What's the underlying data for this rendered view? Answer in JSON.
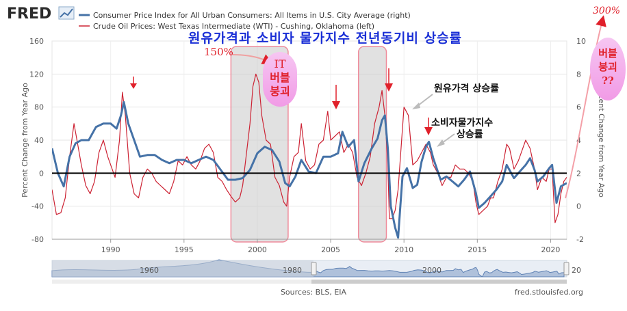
{
  "header": {
    "logo_text": "FRED",
    "logo_icon": "chart-line-icon",
    "legend": [
      {
        "label": "Consumer Price Index for All Urban Consumers: All Items in U.S. City Average (right)",
        "color": "#4572a7"
      },
      {
        "label": "Crude Oil Prices: West Texas Intermediate (WTI) - Cushing, Oklahoma (left)",
        "color": "#cc2233"
      }
    ]
  },
  "overlay": {
    "title": "원유가격과 소비자 물가지수 전년동기비 상승률",
    "label_150": "150%",
    "label_300": "300%",
    "it_bubble": [
      "IT",
      "버블",
      "붕괴"
    ],
    "bubble_q": [
      "버블",
      "붕괴",
      "??"
    ],
    "oil_label": "원유가격 상승률",
    "cpi_label": [
      "소비자물가지수",
      "상승률"
    ]
  },
  "footer": {
    "sources": "Sources: BLS, EIA",
    "site": "fred.stlouisfed.org"
  },
  "navigator": {
    "labels": [
      "1960",
      "1980",
      "2000",
      "20"
    ]
  },
  "chart_data": {
    "type": "line",
    "x_range": [
      1986.0,
      2021.1
    ],
    "x_ticks": [
      "1990",
      "1995",
      "2000",
      "2005",
      "2010",
      "2015",
      "2020"
    ],
    "y_left": {
      "label": "Percent Change from Year Ago",
      "range": [
        -80,
        160
      ],
      "ticks": [
        "160",
        "120",
        "80",
        "40",
        "0",
        "-40",
        "-80"
      ]
    },
    "y_right": {
      "label": "Percent Change from Year Ago",
      "range": [
        -2,
        10
      ],
      "ticks": [
        "10",
        "8",
        "6",
        "4",
        "2",
        "0",
        "-2"
      ]
    },
    "grid": true,
    "legend_position": "top",
    "shaded_periods": [
      [
        1998.2,
        2002.1
      ],
      [
        2006.9,
        2008.8
      ]
    ],
    "series": [
      {
        "name": "Crude Oil Prices: West Texas Intermediate (WTI) - Cushing, Oklahoma (left)",
        "axis": "left",
        "color": "#cc2233",
        "points": [
          [
            1986.0,
            -20
          ],
          [
            1986.3,
            -50
          ],
          [
            1986.6,
            -48
          ],
          [
            1986.9,
            -30
          ],
          [
            1987.2,
            20
          ],
          [
            1987.5,
            60
          ],
          [
            1987.8,
            30
          ],
          [
            1988.0,
            10
          ],
          [
            1988.3,
            -15
          ],
          [
            1988.6,
            -25
          ],
          [
            1988.9,
            -10
          ],
          [
            1989.2,
            25
          ],
          [
            1989.5,
            40
          ],
          [
            1989.8,
            20
          ],
          [
            1990.0,
            10
          ],
          [
            1990.3,
            -5
          ],
          [
            1990.6,
            40
          ],
          [
            1990.8,
            98
          ],
          [
            1991.0,
            70
          ],
          [
            1991.3,
            0
          ],
          [
            1991.6,
            -25
          ],
          [
            1991.9,
            -30
          ],
          [
            1992.2,
            -5
          ],
          [
            1992.5,
            5
          ],
          [
            1992.8,
            0
          ],
          [
            1993.1,
            -10
          ],
          [
            1993.4,
            -15
          ],
          [
            1993.7,
            -20
          ],
          [
            1994.0,
            -25
          ],
          [
            1994.3,
            -10
          ],
          [
            1994.6,
            15
          ],
          [
            1994.9,
            10
          ],
          [
            1995.2,
            20
          ],
          [
            1995.5,
            10
          ],
          [
            1995.8,
            5
          ],
          [
            1996.1,
            15
          ],
          [
            1996.4,
            30
          ],
          [
            1996.7,
            35
          ],
          [
            1997.0,
            25
          ],
          [
            1997.3,
            -5
          ],
          [
            1997.6,
            -10
          ],
          [
            1997.9,
            -20
          ],
          [
            1998.2,
            -28
          ],
          [
            1998.5,
            -35
          ],
          [
            1998.8,
            -30
          ],
          [
            1999.0,
            -15
          ],
          [
            1999.2,
            15
          ],
          [
            1999.5,
            60
          ],
          [
            1999.7,
            105
          ],
          [
            1999.9,
            120
          ],
          [
            2000.1,
            110
          ],
          [
            2000.3,
            70
          ],
          [
            2000.6,
            40
          ],
          [
            2000.9,
            35
          ],
          [
            2001.2,
            -5
          ],
          [
            2001.5,
            -15
          ],
          [
            2001.8,
            -35
          ],
          [
            2002.0,
            -40
          ],
          [
            2002.2,
            -5
          ],
          [
            2002.5,
            20
          ],
          [
            2002.8,
            25
          ],
          [
            2003.0,
            60
          ],
          [
            2003.3,
            15
          ],
          [
            2003.6,
            5
          ],
          [
            2003.9,
            10
          ],
          [
            2004.2,
            35
          ],
          [
            2004.5,
            40
          ],
          [
            2004.8,
            75
          ],
          [
            2005.0,
            40
          ],
          [
            2005.3,
            45
          ],
          [
            2005.6,
            50
          ],
          [
            2005.9,
            25
          ],
          [
            2006.2,
            35
          ],
          [
            2006.5,
            25
          ],
          [
            2006.8,
            -5
          ],
          [
            2007.1,
            -15
          ],
          [
            2007.4,
            0
          ],
          [
            2007.7,
            20
          ],
          [
            2008.0,
            60
          ],
          [
            2008.3,
            80
          ],
          [
            2008.5,
            100
          ],
          [
            2008.7,
            70
          ],
          [
            2008.9,
            10
          ],
          [
            2009.0,
            -55
          ],
          [
            2009.2,
            -55
          ],
          [
            2009.4,
            -45
          ],
          [
            2009.6,
            -20
          ],
          [
            2009.8,
            30
          ],
          [
            2010.0,
            80
          ],
          [
            2010.3,
            70
          ],
          [
            2010.6,
            10
          ],
          [
            2010.9,
            15
          ],
          [
            2011.2,
            25
          ],
          [
            2011.5,
            35
          ],
          [
            2011.8,
            25
          ],
          [
            2012.0,
            10
          ],
          [
            2012.3,
            0
          ],
          [
            2012.6,
            -15
          ],
          [
            2012.9,
            -5
          ],
          [
            2013.2,
            -5
          ],
          [
            2013.5,
            10
          ],
          [
            2013.8,
            5
          ],
          [
            2014.1,
            5
          ],
          [
            2014.4,
            0
          ],
          [
            2014.7,
            -10
          ],
          [
            2014.9,
            -35
          ],
          [
            2015.1,
            -50
          ],
          [
            2015.4,
            -45
          ],
          [
            2015.7,
            -40
          ],
          [
            2015.9,
            -30
          ],
          [
            2016.1,
            -30
          ],
          [
            2016.4,
            -10
          ],
          [
            2016.7,
            5
          ],
          [
            2017.0,
            35
          ],
          [
            2017.2,
            30
          ],
          [
            2017.5,
            5
          ],
          [
            2017.8,
            15
          ],
          [
            2018.0,
            25
          ],
          [
            2018.3,
            40
          ],
          [
            2018.6,
            30
          ],
          [
            2018.9,
            5
          ],
          [
            2019.1,
            -20
          ],
          [
            2019.4,
            -5
          ],
          [
            2019.7,
            -10
          ],
          [
            2019.9,
            5
          ],
          [
            2020.1,
            5
          ],
          [
            2020.3,
            -60
          ],
          [
            2020.5,
            -50
          ],
          [
            2020.7,
            -25
          ],
          [
            2020.9,
            -10
          ],
          [
            2021.1,
            -5
          ]
        ]
      },
      {
        "name": "Consumer Price Index for All Urban Consumers: All Items in U.S. City Average (right)",
        "axis": "right",
        "color": "#4572a7",
        "points": [
          [
            1986.0,
            3.5
          ],
          [
            1986.4,
            2.0
          ],
          [
            1986.8,
            1.2
          ],
          [
            1987.2,
            3.0
          ],
          [
            1987.6,
            3.8
          ],
          [
            1988.0,
            4.0
          ],
          [
            1988.5,
            4.0
          ],
          [
            1989.0,
            4.8
          ],
          [
            1989.5,
            5.0
          ],
          [
            1990.0,
            5.0
          ],
          [
            1990.4,
            4.7
          ],
          [
            1990.7,
            5.5
          ],
          [
            1990.9,
            6.3
          ],
          [
            1991.2,
            5.0
          ],
          [
            1991.6,
            4.0
          ],
          [
            1992.0,
            3.0
          ],
          [
            1992.5,
            3.1
          ],
          [
            1993.0,
            3.1
          ],
          [
            1993.5,
            2.8
          ],
          [
            1994.0,
            2.6
          ],
          [
            1994.5,
            2.8
          ],
          [
            1995.0,
            2.8
          ],
          [
            1995.5,
            2.6
          ],
          [
            1996.0,
            2.8
          ],
          [
            1996.5,
            3.0
          ],
          [
            1997.0,
            2.8
          ],
          [
            1997.5,
            2.2
          ],
          [
            1998.0,
            1.6
          ],
          [
            1998.5,
            1.6
          ],
          [
            1999.0,
            1.7
          ],
          [
            1999.5,
            2.2
          ],
          [
            2000.0,
            3.2
          ],
          [
            2000.5,
            3.6
          ],
          [
            2001.0,
            3.4
          ],
          [
            2001.5,
            2.7
          ],
          [
            2001.9,
            1.4
          ],
          [
            2002.2,
            1.2
          ],
          [
            2002.6,
            1.8
          ],
          [
            2003.0,
            2.8
          ],
          [
            2003.5,
            2.1
          ],
          [
            2004.0,
            2.0
          ],
          [
            2004.5,
            3.0
          ],
          [
            2005.0,
            3.0
          ],
          [
            2005.5,
            3.2
          ],
          [
            2005.8,
            4.5
          ],
          [
            2006.2,
            3.6
          ],
          [
            2006.6,
            4.0
          ],
          [
            2006.9,
            1.5
          ],
          [
            2007.3,
            2.6
          ],
          [
            2007.8,
            3.5
          ],
          [
            2008.2,
            4.1
          ],
          [
            2008.5,
            5.2
          ],
          [
            2008.7,
            5.5
          ],
          [
            2008.9,
            3.5
          ],
          [
            2009.1,
            0.0
          ],
          [
            2009.4,
            -1.3
          ],
          [
            2009.6,
            -1.9
          ],
          [
            2009.9,
            1.8
          ],
          [
            2010.2,
            2.3
          ],
          [
            2010.6,
            1.1
          ],
          [
            2010.9,
            1.3
          ],
          [
            2011.2,
            2.7
          ],
          [
            2011.5,
            3.6
          ],
          [
            2011.7,
            3.9
          ],
          [
            2012.0,
            2.9
          ],
          [
            2012.5,
            1.6
          ],
          [
            2012.9,
            1.8
          ],
          [
            2013.3,
            1.5
          ],
          [
            2013.7,
            1.2
          ],
          [
            2014.1,
            1.6
          ],
          [
            2014.5,
            2.1
          ],
          [
            2014.9,
            0.8
          ],
          [
            2015.1,
            -0.1
          ],
          [
            2015.5,
            0.2
          ],
          [
            2015.9,
            0.6
          ],
          [
            2016.3,
            1.0
          ],
          [
            2016.7,
            1.5
          ],
          [
            2017.0,
            2.5
          ],
          [
            2017.5,
            1.7
          ],
          [
            2017.9,
            2.1
          ],
          [
            2018.3,
            2.5
          ],
          [
            2018.6,
            2.9
          ],
          [
            2018.9,
            2.2
          ],
          [
            2019.1,
            1.5
          ],
          [
            2019.5,
            1.8
          ],
          [
            2019.9,
            2.3
          ],
          [
            2020.1,
            2.5
          ],
          [
            2020.4,
            0.2
          ],
          [
            2020.7,
            1.2
          ],
          [
            2021.1,
            1.4
          ]
        ]
      }
    ]
  }
}
